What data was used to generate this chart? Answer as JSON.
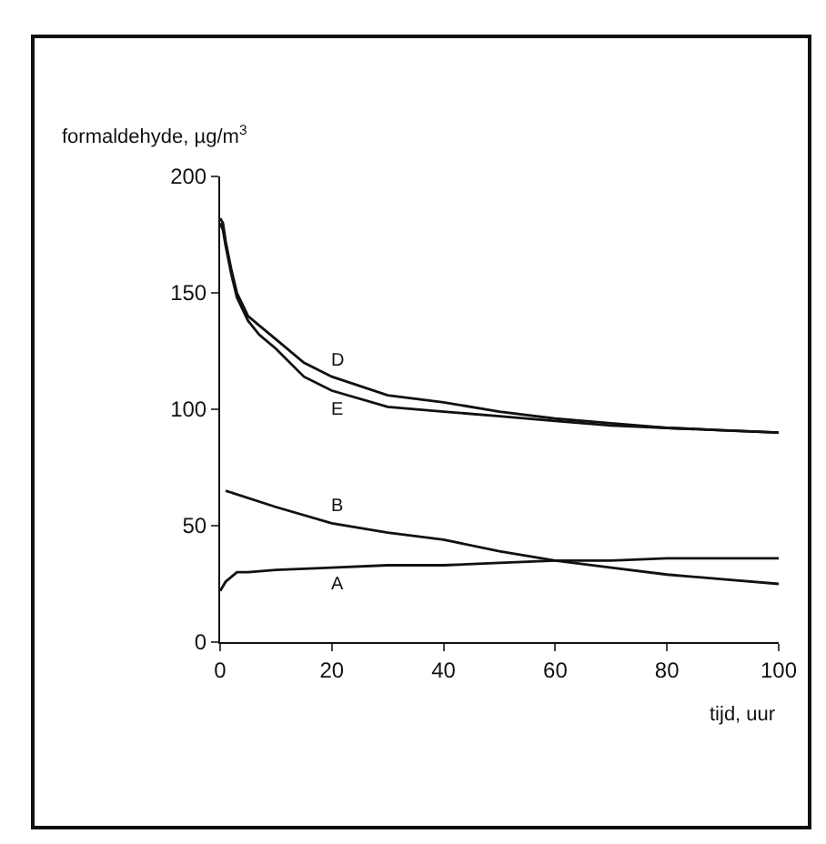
{
  "chart_data": {
    "type": "line",
    "ylabel": "formaldehyde, µg/m$^{3}$",
    "xlabel": "tijd, uur",
    "xlim": [
      0,
      100
    ],
    "ylim": [
      0,
      200
    ],
    "xticks": [
      0,
      20,
      40,
      60,
      80,
      100
    ],
    "yticks": [
      0,
      50,
      100,
      150,
      200
    ],
    "legend": false,
    "marker": "none",
    "line_style": "solid",
    "series": [
      {
        "name": "D",
        "color": "#111111",
        "x": [
          0,
          0.5,
          1,
          2,
          3,
          5,
          7,
          10,
          15,
          20,
          30,
          40,
          50,
          60,
          70,
          80,
          90,
          100
        ],
        "values": [
          182,
          180,
          172,
          160,
          150,
          140,
          136,
          130,
          120,
          114,
          106,
          103,
          99,
          96,
          94,
          92,
          91,
          90
        ]
      },
      {
        "name": "E",
        "color": "#111111",
        "x": [
          0,
          0.5,
          1,
          2,
          3,
          5,
          7,
          10,
          15,
          20,
          30,
          40,
          50,
          60,
          70,
          80,
          90,
          100
        ],
        "values": [
          180,
          177,
          170,
          158,
          148,
          138,
          132,
          126,
          114,
          108,
          101,
          99,
          97,
          95,
          93,
          92,
          91,
          90
        ]
      },
      {
        "name": "B",
        "color": "#111111",
        "x": [
          1,
          10,
          20,
          30,
          40,
          50,
          60,
          70,
          80,
          90,
          100
        ],
        "values": [
          65,
          58,
          51,
          47,
          44,
          39,
          35,
          32,
          29,
          27,
          25
        ]
      },
      {
        "name": "A",
        "color": "#111111",
        "x": [
          0,
          1,
          2,
          3,
          5,
          10,
          20,
          30,
          40,
          50,
          60,
          70,
          80,
          90,
          100
        ],
        "values": [
          22,
          26,
          28,
          30,
          30,
          31,
          32,
          33,
          33,
          34,
          35,
          35,
          36,
          36,
          36
        ]
      }
    ]
  }
}
